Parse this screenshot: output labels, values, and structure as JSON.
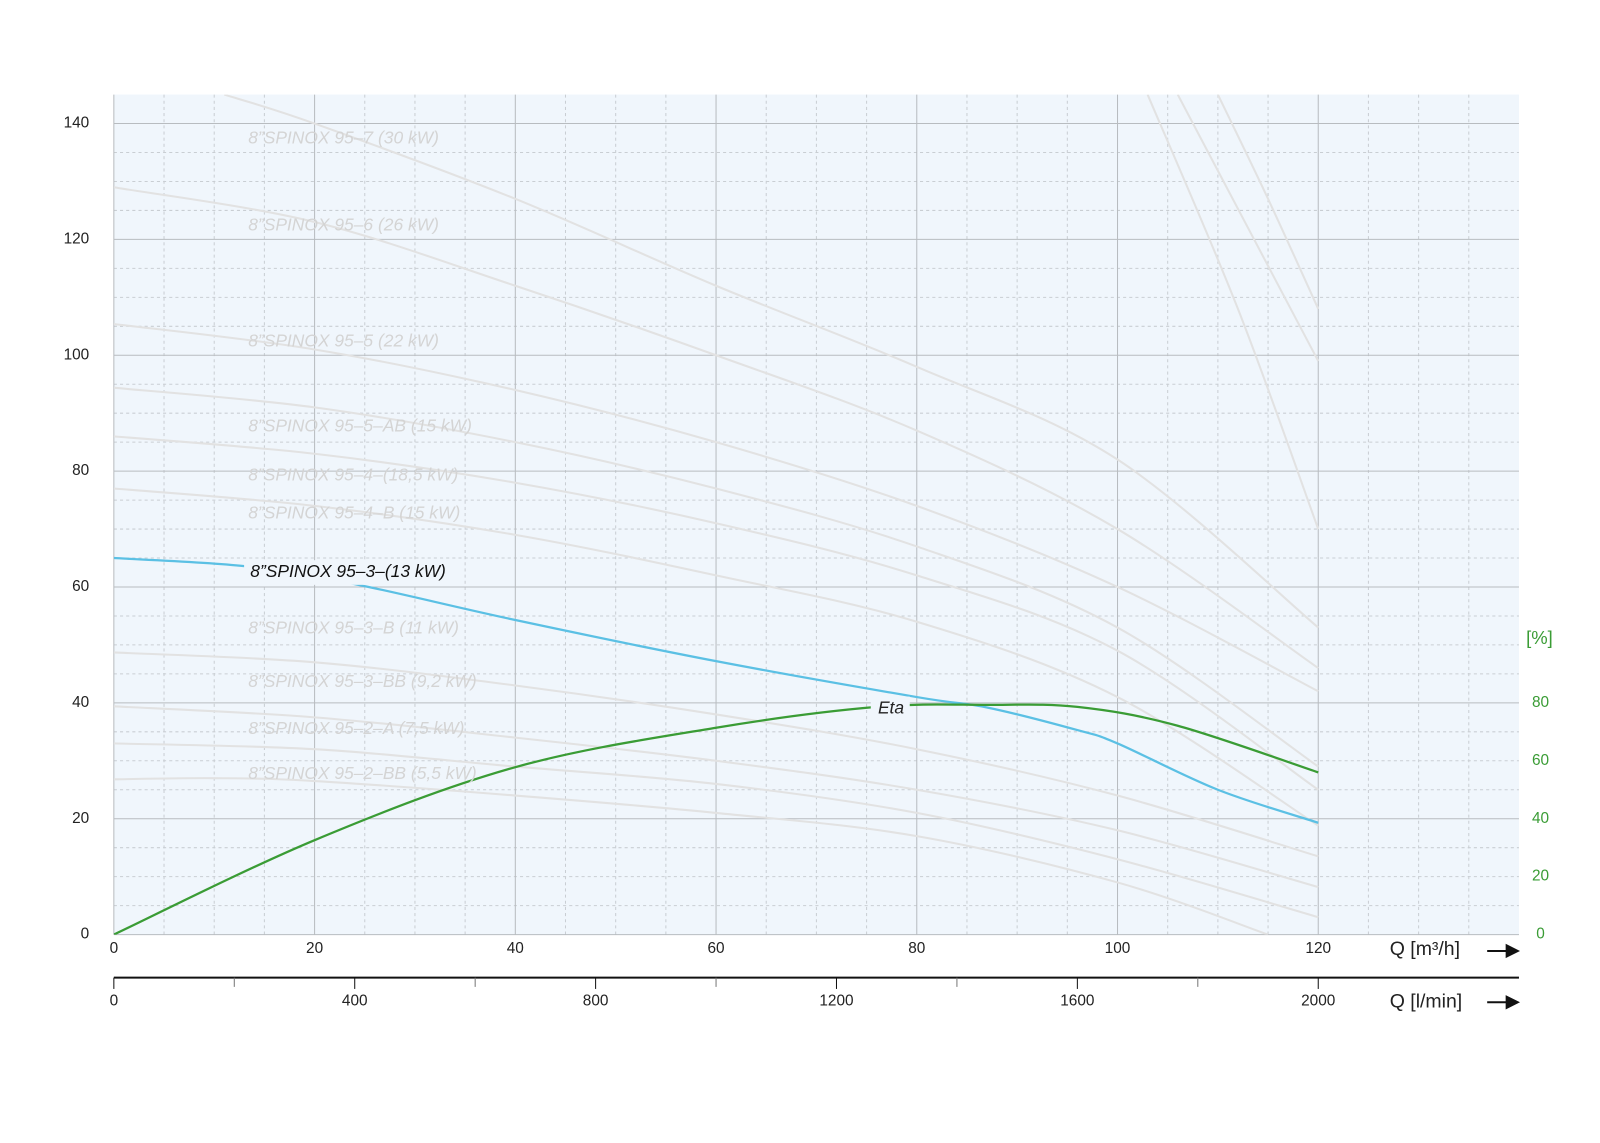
{
  "chart_data": {
    "type": "line",
    "xlabel": "Q [m³/h]",
    "x2label": "Q [l/min]",
    "y2label": "[%]",
    "xlim": [
      0,
      140
    ],
    "ylim": [
      0,
      145
    ],
    "y2lim": [
      0,
      290
    ],
    "x2lim": [
      0,
      2333.33
    ],
    "xticks": [
      0,
      20,
      40,
      60,
      80,
      100,
      120
    ],
    "yticks": [
      0,
      20,
      40,
      60,
      80,
      100,
      120,
      140
    ],
    "y2ticks": [
      0,
      20,
      40,
      60,
      80
    ],
    "x2ticks": [
      0,
      400,
      800,
      1200,
      1600,
      2000
    ],
    "x2minorticks": [
      200,
      600,
      1000,
      1400,
      1800
    ],
    "xminorticks": [
      5,
      10,
      15,
      25,
      30,
      35,
      45,
      50,
      55,
      65,
      70,
      75,
      85,
      90,
      95,
      105,
      110,
      115,
      125,
      130,
      135
    ],
    "yminorticks": [
      5,
      10,
      15,
      25,
      30,
      35,
      45,
      50,
      55,
      65,
      70,
      75,
      85,
      90,
      95,
      105,
      110,
      115,
      125,
      130,
      135
    ],
    "grid": true,
    "series": [
      {
        "color": "#e2e2e2",
        "x": [
          103,
          112,
          120
        ],
        "values": [
          145,
          108,
          70
        ]
      },
      {
        "color": "#e2e2e2",
        "x": [
          106,
          113,
          120
        ],
        "values": [
          145,
          122,
          99
        ]
      },
      {
        "color": "#e2e2e2",
        "x": [
          110,
          115,
          120
        ],
        "values": [
          145,
          127,
          108
        ]
      },
      {
        "name": "8”SPINOX 95–7 (30 kW)",
        "color": "#e2e2e2",
        "x": [
          11,
          20,
          40,
          60,
          80,
          100,
          120
        ],
        "values": [
          145,
          140,
          127,
          112,
          98,
          82,
          53
        ]
      },
      {
        "name": "8”SPINOX 95–6 (26 kW)",
        "color": "#e2e2e2",
        "x": [
          0,
          20,
          40,
          60,
          80,
          100,
          120
        ],
        "values": [
          129,
          123,
          112,
          100,
          87,
          70,
          46
        ]
      },
      {
        "name": "8”SPINOX 95–5 (22 kW)",
        "color": "#e2e2e2",
        "x": [
          0,
          20,
          40,
          60,
          80,
          100,
          120
        ],
        "values": [
          105.4,
          101,
          94,
          85,
          74,
          60,
          42
        ]
      },
      {
        "name": "8”SPINOX 95–5–AB (15 kW)",
        "color": "#e2e2e2",
        "x": [
          0,
          20,
          40,
          60,
          80,
          100,
          120
        ],
        "values": [
          94.4,
          91,
          85,
          77,
          67,
          53,
          29
        ]
      },
      {
        "name": "8”SPINOX 95–4–(18,5 kW)",
        "color": "#e2e2e2",
        "x": [
          0,
          20,
          40,
          60,
          80,
          100,
          120
        ],
        "values": [
          86,
          83,
          78,
          71,
          62,
          49,
          25
        ]
      },
      {
        "name": "8”SPINOX 95–4–B (15 kW)",
        "color": "#e2e2e2",
        "x": [
          0,
          20,
          40,
          60,
          80,
          100,
          120
        ],
        "values": [
          77,
          74,
          69,
          62,
          54,
          41,
          18.8
        ]
      },
      {
        "name": "8”SPINOX 95–3–(13 kW)",
        "color": "#5bc0e4",
        "x": [
          0,
          13,
          24,
          40,
          60,
          80,
          87,
          96,
          100,
          110,
          120
        ],
        "values": [
          65,
          63.6,
          60.5,
          54.3,
          47.2,
          41,
          39.2,
          35.3,
          33,
          25,
          19.3
        ]
      },
      {
        "name": "8”SPINOX 95–3–B (11 kW)",
        "color": "#e2e2e2",
        "x": [
          0,
          20,
          40,
          60,
          80,
          100,
          120
        ],
        "values": [
          48.7,
          47,
          43,
          38,
          32,
          24,
          13.5
        ]
      },
      {
        "name": "8”SPINOX 95–3–BB (9,2 kW)",
        "color": "#e2e2e2",
        "x": [
          0,
          20,
          40,
          60,
          80,
          100,
          120
        ],
        "values": [
          39.4,
          37.5,
          34,
          30,
          25,
          18,
          8.2
        ]
      },
      {
        "name": "8”SPINOX 95–2–A (7,5 kW)",
        "color": "#e2e2e2",
        "x": [
          0,
          20,
          40,
          60,
          80,
          100,
          120
        ],
        "values": [
          33,
          32,
          29,
          26,
          21,
          13,
          3
        ]
      },
      {
        "name": "8”SPINOX 95–2–BB (5,5 kW)",
        "color": "#e2e2e2",
        "x": [
          0,
          10,
          20,
          40,
          60,
          80,
          100,
          115
        ],
        "values": [
          26.8,
          27,
          26.5,
          24,
          21,
          17,
          9,
          0
        ]
      },
      {
        "name": "Eta",
        "color": "#3a9c35",
        "axis": "y2",
        "x": [
          0,
          20,
          40,
          60,
          76,
          87,
          96,
          106,
          120
        ],
        "values": [
          0,
          32.6,
          57.8,
          71.4,
          78.6,
          79.3,
          78.6,
          72.1,
          56
        ]
      }
    ]
  }
}
